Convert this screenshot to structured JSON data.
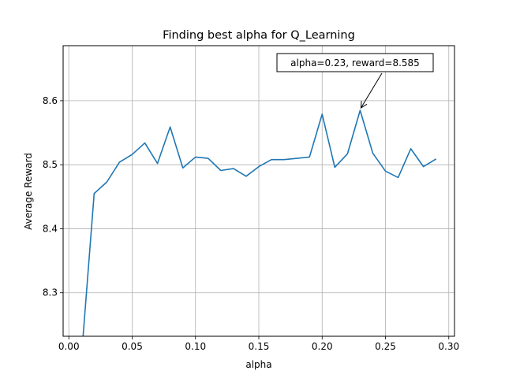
{
  "chart_data": {
    "type": "line",
    "title": "Finding best alpha for Q_Learning",
    "xlabel": "alpha",
    "ylabel": "Average Reward",
    "xlim": [
      -0.0045,
      0.3045
    ],
    "ylim": [
      8.232,
      8.686
    ],
    "xticks": [
      0.0,
      0.05,
      0.1,
      0.15,
      0.2,
      0.25,
      0.3
    ],
    "xtick_labels": [
      "0.00",
      "0.05",
      "0.10",
      "0.15",
      "0.20",
      "0.25",
      "0.30"
    ],
    "yticks": [
      8.3,
      8.4,
      8.5,
      8.6
    ],
    "ytick_labels": [
      "8.3",
      "8.4",
      "8.5",
      "8.6"
    ],
    "grid": true,
    "line_color": "#1f77b4",
    "series": [
      {
        "x": [
          0.01,
          0.02,
          0.03,
          0.04,
          0.05,
          0.06,
          0.07,
          0.08,
          0.09,
          0.1,
          0.11,
          0.12,
          0.13,
          0.14,
          0.15,
          0.16,
          0.17,
          0.18,
          0.19,
          0.2,
          0.21,
          0.22,
          0.23,
          0.24,
          0.25,
          0.26,
          0.27,
          0.28,
          0.29
        ],
        "values": [
          8.2,
          8.455,
          8.473,
          8.504,
          8.516,
          8.534,
          8.502,
          8.559,
          8.495,
          8.512,
          8.51,
          8.491,
          8.494,
          8.482,
          8.497,
          8.508,
          8.508,
          8.51,
          8.512,
          8.579,
          8.496,
          8.517,
          8.585,
          8.518,
          8.49,
          8.48,
          8.525,
          8.497,
          8.509
        ]
      }
    ],
    "annotation": {
      "text": "alpha=0.23, reward=8.585",
      "x": 0.23,
      "y": 8.585
    }
  }
}
